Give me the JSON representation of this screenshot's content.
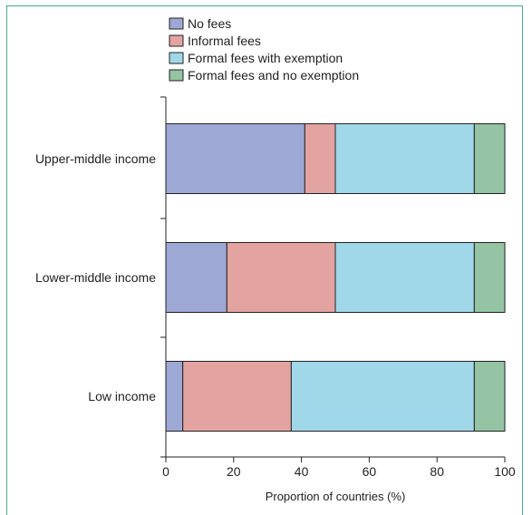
{
  "chart_data": {
    "type": "bar",
    "orientation": "horizontal",
    "stacked": true,
    "categories": [
      "Upper-middle income",
      "Lower-middle income",
      "Low income"
    ],
    "series": [
      {
        "name": "No fees",
        "color": "#9ea8d4",
        "values": [
          41,
          18,
          5
        ]
      },
      {
        "name": "Informal fees",
        "color": "#e3a3a1",
        "values": [
          9,
          32,
          32
        ]
      },
      {
        "name": "Formal fees with exemption",
        "color": "#a0d8e9",
        "values": [
          41,
          41,
          54
        ]
      },
      {
        "name": "Formal fees and no exemption",
        "color": "#94c4a3",
        "values": [
          9,
          9,
          9
        ]
      }
    ],
    "xlabel": "Proportion of countries (%)",
    "xlim": [
      0,
      100
    ],
    "xticks": [
      0,
      20,
      40,
      60,
      80,
      100
    ],
    "xtick_labels": [
      "0",
      "20",
      "40",
      "60",
      "80",
      "100"
    ],
    "grid": false,
    "legend_position": "top-center"
  }
}
